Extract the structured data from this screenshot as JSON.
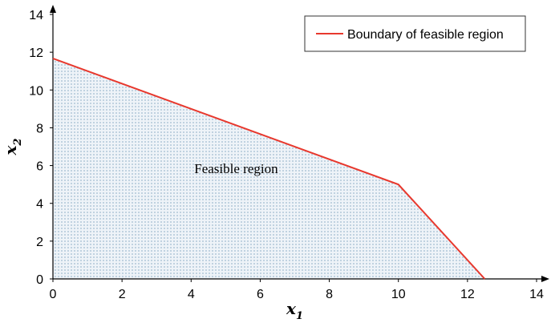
{
  "chart_data": {
    "type": "area",
    "x_label": {
      "base": "x",
      "sub": "1"
    },
    "y_label": {
      "base": "x",
      "sub": "2"
    },
    "xlim": [
      0,
      14
    ],
    "ylim": [
      0,
      14
    ],
    "x_ticks": [
      0,
      2,
      4,
      6,
      8,
      10,
      12,
      14
    ],
    "y_ticks": [
      0,
      2,
      4,
      6,
      8,
      10,
      12,
      14
    ],
    "grid": false,
    "legend_position": "top-right",
    "series": [
      {
        "name": "Boundary of feasible region",
        "color": "#e8382d",
        "x": [
          0,
          10,
          12.5
        ],
        "y": [
          11.67,
          5,
          0
        ]
      }
    ],
    "feasible_region": {
      "label": "Feasible region",
      "label_at": [
        6,
        5.6
      ],
      "fill": "#b9cfe0",
      "vertices": [
        [
          0,
          0
        ],
        [
          0,
          11.67
        ],
        [
          10,
          5
        ],
        [
          12.5,
          0
        ]
      ]
    }
  }
}
